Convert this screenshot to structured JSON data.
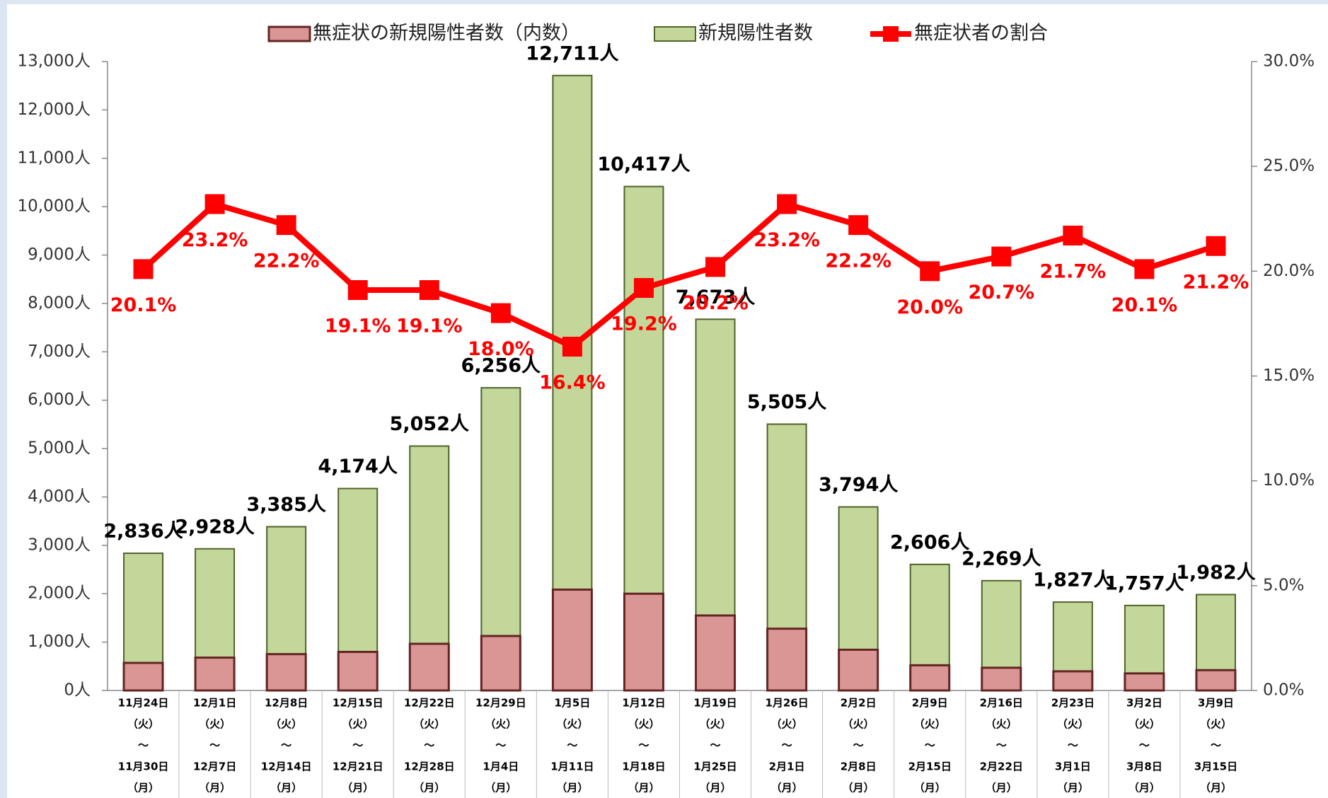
{
  "chart_data": {
    "type": "bar-line",
    "categories": [
      [
        "11月24日",
        "（火）",
        "～",
        "11月30日",
        "（月）"
      ],
      [
        "12月1日",
        "（火）",
        "～",
        "12月7日",
        "（月）"
      ],
      [
        "12月8日",
        "（火）",
        "～",
        "12月14日",
        "（月）"
      ],
      [
        "12月15日",
        "（火）",
        "～",
        "12月21日",
        "（月）"
      ],
      [
        "12月22日",
        "（火）",
        "～",
        "12月28日",
        "（月）"
      ],
      [
        "12月29日",
        "（火）",
        "～",
        "1月4日",
        "（月）"
      ],
      [
        "1月5日",
        "（火）",
        "～",
        "1月11日",
        "（月）"
      ],
      [
        "1月12日",
        "（火）",
        "～",
        "1月18日",
        "（月）"
      ],
      [
        "1月19日",
        "（火）",
        "～",
        "1月25日",
        "（月）"
      ],
      [
        "1月26日",
        "（火）",
        "～",
        "2月1日",
        "（月）"
      ],
      [
        "2月2日",
        "（火）",
        "～",
        "2月8日",
        "（月）"
      ],
      [
        "2月9日",
        "（火）",
        "～",
        "2月15日",
        "（月）"
      ],
      [
        "2月16日",
        "（火）",
        "～",
        "2月22日",
        "（月）"
      ],
      [
        "2月23日",
        "（火）",
        "～",
        "3月1日",
        "（月）"
      ],
      [
        "3月2日",
        "（火）",
        "～",
        "3月8日",
        "（月）"
      ],
      [
        "3月9日",
        "（火）",
        "～",
        "3月15日",
        "（月）"
      ]
    ],
    "series": [
      {
        "name": "無症状の新規陽性者数（内数）",
        "type": "bar",
        "color": "#d99694",
        "edge": "#632523",
        "values": [
          570,
          679,
          751,
          797,
          965,
          1126,
          2085,
          2000,
          1550,
          1277,
          842,
          521,
          470,
          396,
          353,
          420
        ]
      },
      {
        "name": "新規陽性者数",
        "type": "bar",
        "color": "#c4d79b",
        "edge": "#4f6228",
        "values": [
          2836,
          2928,
          3385,
          4174,
          5052,
          6256,
          12711,
          10417,
          7673,
          5505,
          3794,
          2606,
          2269,
          1827,
          1757,
          1982
        ],
        "value_labels": [
          "2,836人",
          "2,928人",
          "3,385人",
          "4,174人",
          "5,052人",
          "6,256人",
          "12,711人",
          "10,417人",
          "7,673人",
          "5,505人",
          "3,794人",
          "2,606人",
          "2,269人",
          "1,827人",
          "1,757人",
          "1,982人"
        ]
      },
      {
        "name": "無症状者の割合",
        "type": "line",
        "axis": "y2",
        "color": "#ff0000",
        "values": [
          20.1,
          23.2,
          22.2,
          19.1,
          19.1,
          18.0,
          16.4,
          19.2,
          20.2,
          23.2,
          22.2,
          20.0,
          20.7,
          21.7,
          20.1,
          21.2
        ],
        "value_labels": [
          "20.1%",
          "23.2%",
          "22.2%",
          "19.1%",
          "19.1%",
          "18.0%",
          "16.4%",
          "19.2%",
          "20.2%",
          "23.2%",
          "22.2%",
          "20.0%",
          "20.7%",
          "21.7%",
          "20.1%",
          "21.2%"
        ]
      }
    ],
    "ylim": [
      0,
      13000
    ],
    "yticks": [
      {
        "value": 0,
        "label": "0人"
      },
      {
        "value": 1000,
        "label": "1,000人"
      },
      {
        "value": 2000,
        "label": "2,000人"
      },
      {
        "value": 3000,
        "label": "3,000人"
      },
      {
        "value": 4000,
        "label": "4,000人"
      },
      {
        "value": 5000,
        "label": "5,000人"
      },
      {
        "value": 6000,
        "label": "6,000人"
      },
      {
        "value": 7000,
        "label": "7,000人"
      },
      {
        "value": 8000,
        "label": "8,000人"
      },
      {
        "value": 9000,
        "label": "9,000人"
      },
      {
        "value": 10000,
        "label": "10,000人"
      },
      {
        "value": 11000,
        "label": "11,000人"
      },
      {
        "value": 12000,
        "label": "12,000人"
      },
      {
        "value": 13000,
        "label": "13,000人"
      }
    ],
    "y2lim": [
      0,
      30
    ],
    "y2ticks": [
      {
        "value": 0,
        "label": "0.0%"
      },
      {
        "value": 5,
        "label": "5.0%"
      },
      {
        "value": 10,
        "label": "10.0%"
      },
      {
        "value": 15,
        "label": "15.0%"
      },
      {
        "value": 20,
        "label": "20.0%"
      },
      {
        "value": 25,
        "label": "25.0%"
      },
      {
        "value": 30,
        "label": "30.0%"
      }
    ],
    "legend": "top"
  }
}
